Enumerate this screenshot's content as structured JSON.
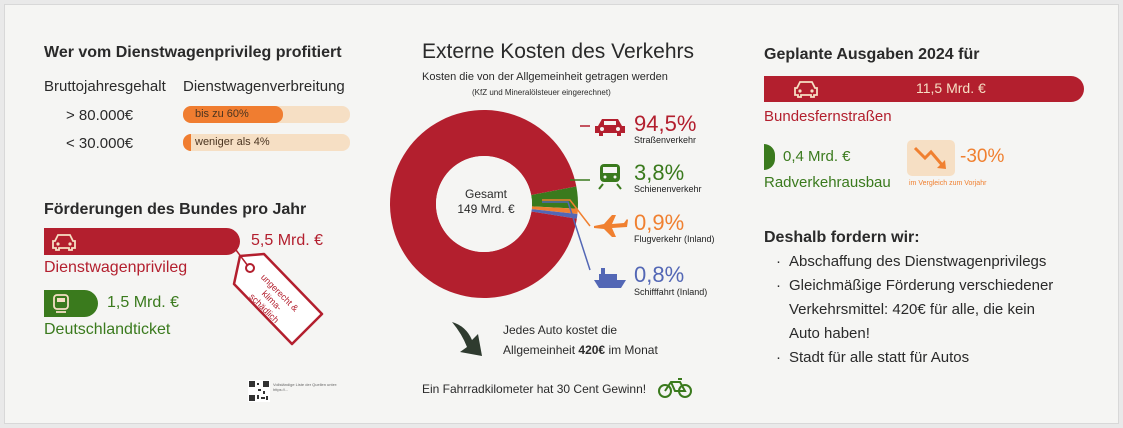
{
  "left": {
    "title": "Wer vom Dienstwagenprivileg profitiert",
    "col1": "Bruttojahresgehalt",
    "col2": "Dienstwagenverbreitung",
    "rows": [
      {
        "salary": "> 80.000€",
        "label": "bis zu 60%",
        "share": 0.6
      },
      {
        "salary": "< 30.000€",
        "label": "weniger als 4%",
        "share": 0.04
      }
    ],
    "funding_title": "Förderungen des Bundes pro Jahr",
    "privilege_value": "5,5 Mrd. €",
    "privilege_label": "Dienstwagenprivileg",
    "tag_text": [
      "ungerecht &",
      "klima-",
      "schädlich"
    ],
    "ticket_value": "1,5 Mrd. €",
    "ticket_label": "Deutschlandticket",
    "qr_caption": "Vollständige Liste der Quellen unter: https://..."
  },
  "center": {
    "title": "Externe Kosten des Verkehrs",
    "subtitle": "Kosten die von der Allgemeinheit getragen werden",
    "subnote": "(KfZ und Mineralölsteuer eingerechnet)",
    "total_label": "Gesamt",
    "total_value": "149 Mrd. €",
    "items": [
      {
        "pct": "94,5%",
        "label": "Straßenverkehr",
        "icon": "car-icon"
      },
      {
        "pct": "3,8%",
        "label": "Schienenverkehr",
        "icon": "train-icon"
      },
      {
        "pct": "0,9%",
        "label": "Flugverkehr (Inland)",
        "icon": "plane-icon"
      },
      {
        "pct": "0,8%",
        "label": "Schifffahrt (Inland)",
        "icon": "ship-icon"
      }
    ],
    "auto_line1": "Jedes Auto kostet die",
    "auto_line2_pre": "Allgemeinheit",
    "auto_line2_bold": "420€",
    "auto_line2_post": "im Monat",
    "bike_note": "Ein Fahrradkilometer hat 30 Cent Gewinn!"
  },
  "chart_data": {
    "type": "pie",
    "title": "Externe Kosten des Verkehrs",
    "categories": [
      "Straßenverkehr",
      "Schienenverkehr",
      "Flugverkehr (Inland)",
      "Schifffahrt (Inland)"
    ],
    "values": [
      94.5,
      3.8,
      0.9,
      0.8
    ],
    "colors": [
      "#b31f2e",
      "#3a7a1d",
      "#f08030",
      "#5367b5"
    ]
  },
  "right": {
    "title": "Geplante Ausgaben 2024 für",
    "road_value": "11,5 Mrd. €",
    "road_label": "Bundesfernstraßen",
    "bike_value": "0,4 Mrd. €",
    "bike_label": "Radverkehrausbau",
    "change": "-30%",
    "change_note": "im Vergleich zum Vorjahr",
    "demand_title": "Deshalb fordern wir:",
    "demands": [
      "Abschaffung des Dienstwagenprivilegs",
      "Gleichmäßige Förderung verschiedener",
      "Verkehrsmittel: 420€ für alle, die kein",
      "Auto haben!",
      "Stadt für alle statt für Autos"
    ]
  }
}
